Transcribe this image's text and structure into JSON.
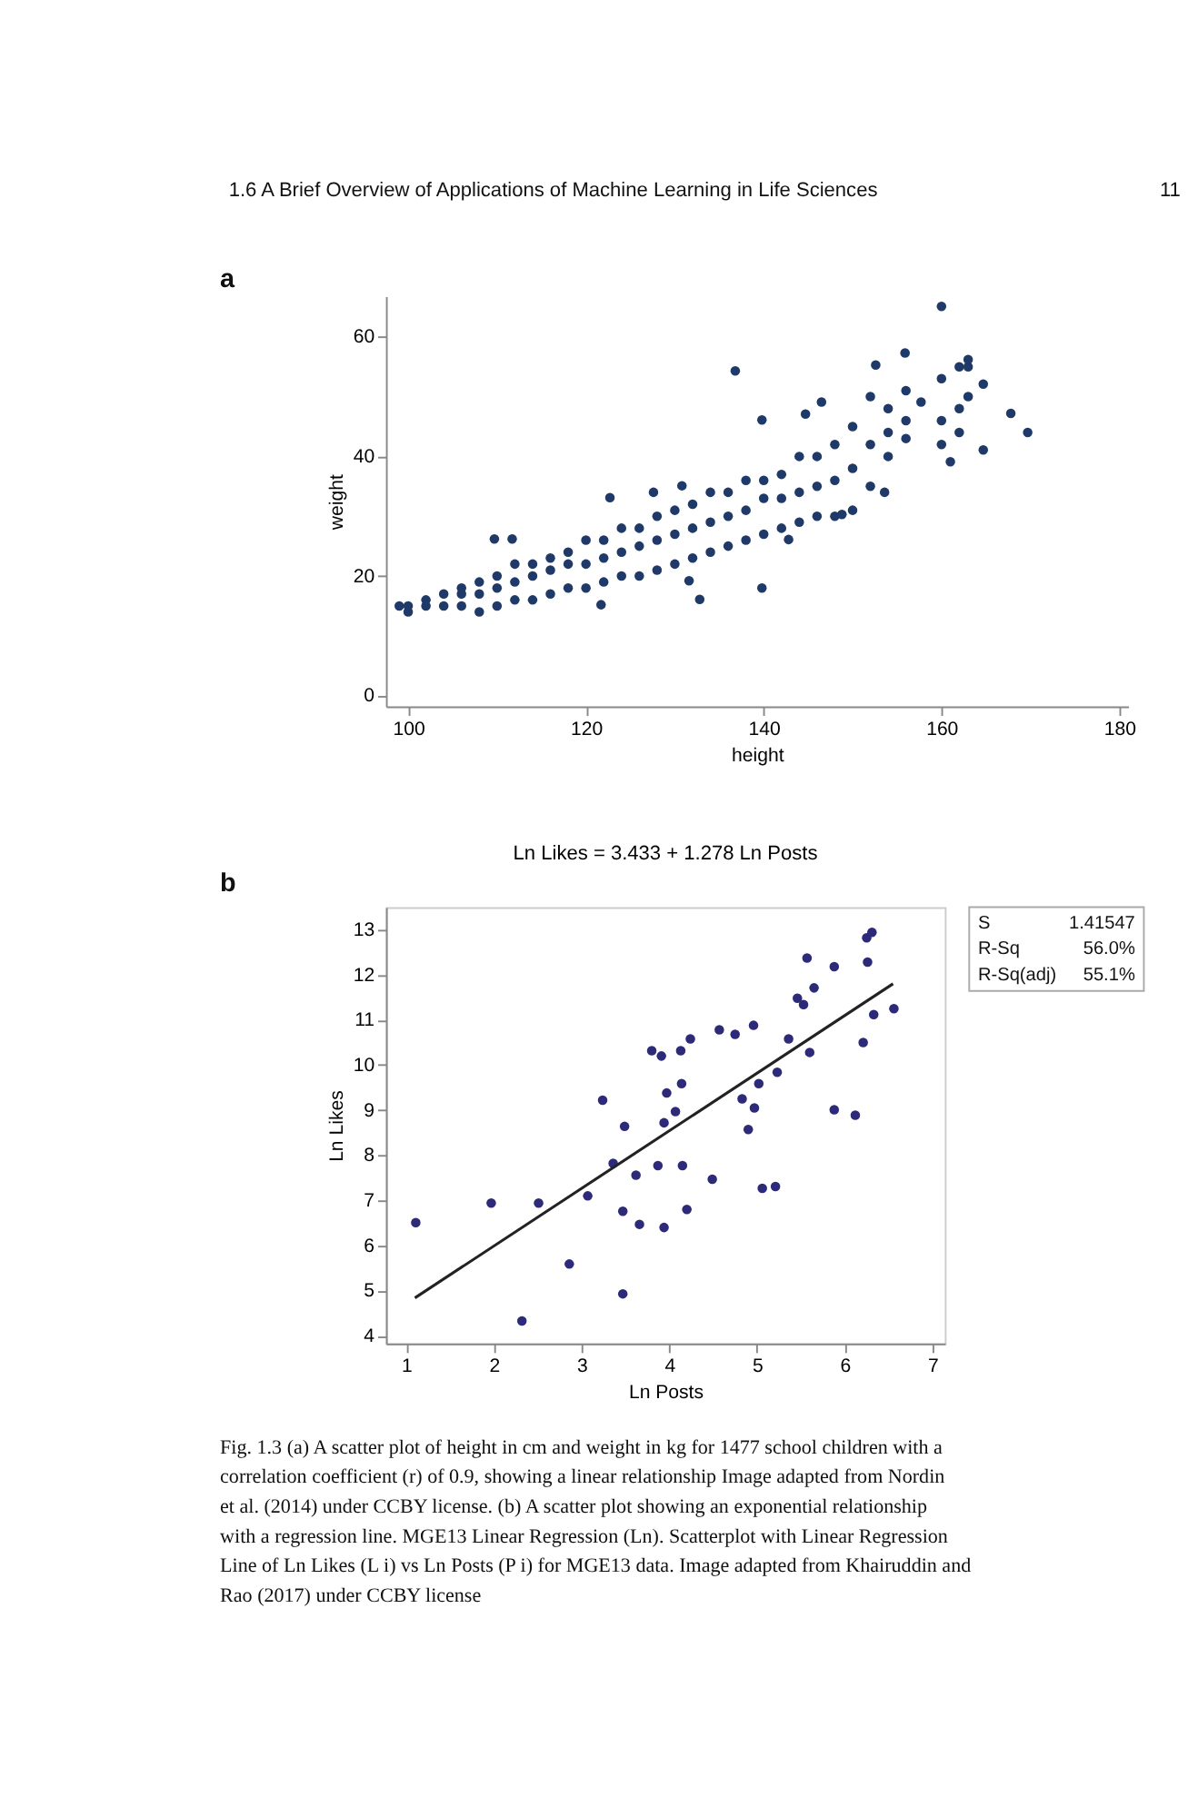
{
  "chart_data": [
    {
      "type": "scatter",
      "xlabel": "height",
      "ylabel": "weight",
      "xlim": [
        97.5,
        181
      ],
      "ylim": [
        -1.8,
        66.8
      ],
      "xticks": [
        100,
        120,
        140,
        160,
        180
      ],
      "yticks": [
        0,
        20,
        40,
        60
      ],
      "grid": false,
      "marker": "circle",
      "annotations": [
        "1.6 A Brief Overview of Applications of Machine Learning in Life Sciences",
        "11",
        "a"
      ],
      "series": [
        {
          "color": "#1f3a68",
          "x": [
            99,
            100,
            100,
            102,
            102,
            104,
            104,
            106,
            106,
            106,
            108,
            108,
            108,
            110,
            110,
            110,
            112,
            112,
            112,
            114,
            114,
            114,
            116,
            116,
            116,
            118,
            118,
            118,
            120,
            120,
            120,
            122,
            122,
            122,
            124,
            124,
            124,
            126,
            126,
            126,
            128,
            128,
            128,
            130,
            130,
            130,
            132,
            132,
            132,
            134,
            134,
            134,
            136,
            136,
            136,
            138,
            138,
            138,
            140,
            140,
            140,
            142,
            142,
            142,
            144,
            144,
            144,
            146,
            146,
            146,
            148,
            148,
            148,
            150,
            150,
            150,
            152,
            152,
            152,
            154,
            154,
            154,
            156,
            156,
            156,
            160,
            160,
            160,
            162,
            162,
            162,
            163,
            163,
            160,
            136.8,
            155.9,
            152.6,
            163,
            164.7,
            167.8,
            169.7,
            164.7,
            161,
            153.6,
            139.8,
            132.8,
            121.7,
            109.7,
            111.7,
            122.7,
            127.6,
            130.8,
            157.7,
            144.7,
            139.8,
            146.5,
            148.8,
            142.8,
            131.6
          ],
          "values": [
            15,
            14,
            15,
            15,
            16,
            15,
            17,
            15,
            17,
            18,
            14,
            17,
            19,
            15,
            18,
            20,
            16,
            19,
            22,
            16,
            20,
            22,
            17,
            21,
            23,
            18,
            22,
            24,
            18,
            22,
            26,
            19,
            23,
            26,
            20,
            24,
            28,
            20,
            25,
            28,
            21,
            26,
            30,
            22,
            27,
            31,
            23,
            28,
            32,
            24,
            29,
            34,
            25,
            30,
            34,
            26,
            31,
            36,
            27,
            33,
            36,
            28,
            33,
            37,
            29,
            34,
            40,
            30,
            35,
            40,
            30,
            36,
            42,
            31,
            38,
            45,
            35,
            42,
            50,
            40,
            44,
            48,
            43,
            46,
            51,
            42,
            46,
            53,
            44,
            48,
            55,
            50,
            55,
            65.1,
            54.3,
            57.3,
            55.3,
            56.2,
            52.1,
            47.2,
            44.0,
            41.1,
            39.1,
            34,
            18,
            16.1,
            15.2,
            26.2,
            26.2,
            33.1,
            34,
            35.1,
            49.1,
            47.1,
            46.1,
            49.1,
            30.3,
            26.1,
            19.2
          ]
        }
      ]
    },
    {
      "type": "scatter",
      "title": "Ln Likes = 3.433 + 1.278 Ln Posts",
      "xlabel": "Ln Posts",
      "ylabel": "Ln Likes",
      "xlim": [
        0.77,
        7.14
      ],
      "ylim": [
        3.83,
        13.5
      ],
      "xticks": [
        1,
        2,
        3,
        4,
        5,
        6,
        7
      ],
      "yticks": [
        4,
        5,
        6,
        7,
        8,
        9,
        10,
        11,
        12,
        13
      ],
      "grid": false,
      "marker": "circle",
      "annotations": [
        "S 1.41547",
        "R-Sq 56.0%",
        "R-Sq(adj) 55.1%",
        "b",
        "Fig. 1.3 (a) A scatter plot of height in cm and weight in kg for 1477 school children with a correlation coefficient (r) of 0.9, showing a linear relationship Image adapted from Nordin et al. (2014) under CCBY license. (b) A scatter plot showing an exponential relationship with a regression line. MGE13 Linear Regression (Ln). Scatterplot with Linear Regression Line of Ln Likes (L i) vs Ln Posts (P i) for MGE13 data. Image adapted from Khairuddin and Rao (2017) under CCBY license"
      ],
      "series": [
        {
          "color": "#2e2a7a",
          "x": [
            1.11,
            1.97,
            2.51,
            2.32,
            2.86,
            3.07,
            3.24,
            3.36,
            3.49,
            3.47,
            3.47,
            3.62,
            3.66,
            3.8,
            3.91,
            3.87,
            3.94,
            3.97,
            3.94,
            4.07,
            4.13,
            4.14,
            4.15,
            4.2,
            4.24,
            4.49,
            4.57,
            4.75,
            4.83,
            4.9,
            4.96,
            4.97,
            5.02,
            5.06,
            5.21,
            5.23,
            5.36,
            5.46,
            5.53,
            5.57,
            5.6,
            5.65,
            5.88,
            5.88,
            6.12,
            6.21,
            6.25,
            6.31,
            6.26,
            6.33,
            6.56
          ],
          "values": [
            6.51,
            6.94,
            6.94,
            4.33,
            5.59,
            7.1,
            9.22,
            7.82,
            8.64,
            6.76,
            4.93,
            7.56,
            6.47,
            10.32,
            10.2,
            7.77,
            8.72,
            9.38,
            6.4,
            8.97,
            10.32,
            9.59,
            7.77,
            6.8,
            10.58,
            7.47,
            10.78,
            10.68,
            9.25,
            8.57,
            10.88,
            9.05,
            9.59,
            7.27,
            7.31,
            9.84,
            10.58,
            11.48,
            11.34,
            12.37,
            10.28,
            11.71,
            12.18,
            9.01,
            8.89,
            10.5,
            12.82,
            12.94,
            12.28,
            11.12,
            11.25
          ]
        },
        {
          "type": "line",
          "color": "#222222",
          "marker": "none",
          "line_style": "solid",
          "x": [
            1.1,
            6.55
          ],
          "values": [
            4.84,
            11.8
          ]
        }
      ]
    }
  ]
}
